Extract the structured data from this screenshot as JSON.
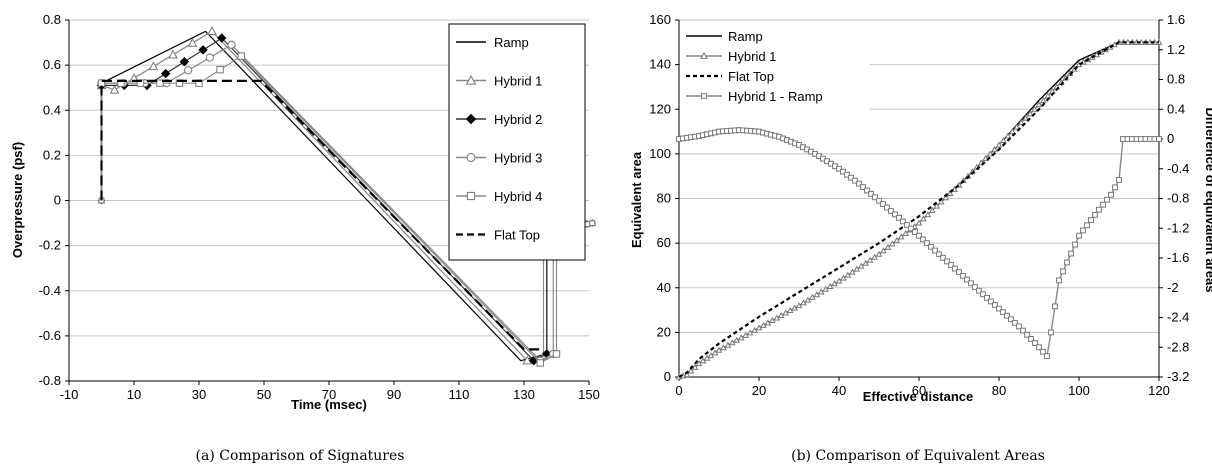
{
  "chart_data": [
    {
      "type": "line",
      "caption": "(a) Comparison of Signatures",
      "xlabel": "Time (msec)",
      "ylabel": "Overpressure (psf)",
      "xlim": [
        -10,
        150
      ],
      "ylim": [
        -0.8,
        0.8
      ],
      "xticks": [
        -10,
        10,
        30,
        50,
        70,
        90,
        110,
        130,
        150
      ],
      "yticks": [
        -0.8,
        -0.6,
        -0.4,
        -0.2,
        0,
        0.2,
        0.4,
        0.6,
        0.8
      ],
      "ytick_labels": [
        "-0.8",
        "-0.6",
        "-0.4",
        "-0.2",
        "0",
        "0.2",
        "0.4",
        "0.6",
        "0.8"
      ],
      "grid": "horizontal",
      "legend_position": "top-right",
      "series": [
        {
          "name": "Ramp",
          "style": "solid",
          "marker": "none",
          "x": [
            0,
            0,
            32,
            129,
            137,
            137,
            140,
            144,
            148,
            151
          ],
          "y": [
            0,
            0.52,
            0.75,
            -0.71,
            -0.68,
            -0.16,
            -0.14,
            -0.12,
            -0.11,
            -0.1
          ]
        },
        {
          "name": "Hybrid 1",
          "style": "solid",
          "marker": "triangle",
          "x": [
            0,
            0,
            4,
            34,
            131,
            136,
            136,
            140,
            145,
            151
          ],
          "y": [
            0,
            0.51,
            0.49,
            0.75,
            -0.71,
            -0.69,
            -0.16,
            -0.14,
            -0.12,
            -0.1
          ]
        },
        {
          "name": "Hybrid 2",
          "style": "solid",
          "marker": "diamond",
          "x": [
            0,
            0,
            14,
            37,
            133,
            137,
            137,
            141,
            146,
            151
          ],
          "y": [
            0,
            0.51,
            0.51,
            0.72,
            -0.71,
            -0.68,
            -0.15,
            -0.13,
            -0.11,
            -0.1
          ]
        },
        {
          "name": "Hybrid 3",
          "style": "solid",
          "marker": "circle",
          "x": [
            0,
            0,
            20,
            40,
            135,
            139,
            139,
            143,
            147,
            151
          ],
          "y": [
            0,
            0.52,
            0.52,
            0.69,
            -0.71,
            -0.68,
            -0.15,
            -0.13,
            -0.11,
            -0.1
          ]
        },
        {
          "name": "Hybrid 4",
          "style": "solid",
          "marker": "square",
          "x": [
            0,
            0,
            30,
            43,
            135,
            140,
            140,
            144,
            148,
            151
          ],
          "y": [
            0,
            0.52,
            0.52,
            0.64,
            -0.72,
            -0.68,
            -0.14,
            -0.12,
            -0.11,
            -0.1
          ]
        },
        {
          "name": "Flat Top",
          "style": "dashed",
          "marker": "none",
          "x": [
            0,
            0,
            49,
            130,
            135
          ],
          "y": [
            0,
            0.53,
            0.53,
            -0.66,
            -0.66
          ]
        }
      ]
    },
    {
      "type": "line",
      "caption": "(b) Comparison of Equivalent Areas",
      "xlabel": "Effective distance",
      "ylabel": "Equivalent area",
      "y2label": "Difference of equivalent areas",
      "xlim": [
        0,
        120
      ],
      "ylim": [
        0,
        160
      ],
      "y2lim": [
        -3.2,
        1.6
      ],
      "xticks": [
        0,
        20,
        40,
        60,
        80,
        100,
        120
      ],
      "yticks": [
        0,
        20,
        40,
        60,
        80,
        100,
        120,
        140,
        160
      ],
      "y2ticks": [
        -3.2,
        -2.8,
        -2.4,
        -2,
        -1.6,
        -1.2,
        -0.8,
        -0.4,
        0,
        0.4,
        0.8,
        1.2,
        1.6
      ],
      "y2tick_labels": [
        "-3.2",
        "-2.8",
        "-2.4",
        "-2",
        "-1.6",
        "-1.2",
        "-0.8",
        "-0.4",
        "0",
        "0.4",
        "0.8",
        "1.2",
        "1.6"
      ],
      "grid": "horizontal",
      "legend_position": "top-left",
      "series": [
        {
          "name": "Ramp",
          "style": "solid",
          "marker": "none",
          "axis": "left",
          "x": [
            0,
            2,
            5,
            10,
            20,
            30,
            40,
            50,
            60,
            70,
            80,
            90,
            100,
            110,
            120
          ],
          "y": [
            0,
            1,
            6,
            12,
            22,
            32,
            43,
            55,
            69,
            86,
            104,
            124,
            142,
            150,
            150
          ]
        },
        {
          "name": "Hybrid 1",
          "style": "solid",
          "marker": "triangle",
          "axis": "left",
          "x": [
            0,
            2,
            5,
            10,
            20,
            30,
            40,
            50,
            60,
            70,
            80,
            90,
            100,
            110,
            120
          ],
          "y": [
            0,
            1,
            6,
            12,
            22,
            32,
            43,
            55,
            69,
            86,
            104,
            122,
            140,
            150,
            150
          ]
        },
        {
          "name": "Flat Top",
          "style": "dotted",
          "marker": "none",
          "axis": "left",
          "x": [
            0,
            2,
            5,
            10,
            20,
            30,
            40,
            50,
            60,
            70,
            80,
            90,
            100,
            110,
            120
          ],
          "y": [
            0,
            2,
            8,
            15,
            27,
            38,
            49,
            60,
            72,
            86,
            102,
            120,
            140,
            150,
            150
          ]
        },
        {
          "name": "Hybrid 1 - Ramp",
          "style": "solid",
          "marker": "square",
          "axis": "right",
          "x": [
            0,
            5,
            10,
            15,
            20,
            25,
            30,
            35,
            40,
            45,
            50,
            55,
            60,
            65,
            70,
            75,
            80,
            85,
            90,
            92,
            93,
            95,
            100,
            105,
            108,
            110,
            111,
            120
          ],
          "y": [
            0.0,
            0.04,
            0.1,
            0.12,
            0.1,
            0.03,
            -0.08,
            -0.23,
            -0.4,
            -0.6,
            -0.83,
            -1.06,
            -1.3,
            -1.55,
            -1.79,
            -2.04,
            -2.28,
            -2.52,
            -2.8,
            -2.92,
            -2.6,
            -1.9,
            -1.3,
            -0.95,
            -0.75,
            -0.55,
            0.0,
            0.0
          ]
        }
      ]
    }
  ]
}
